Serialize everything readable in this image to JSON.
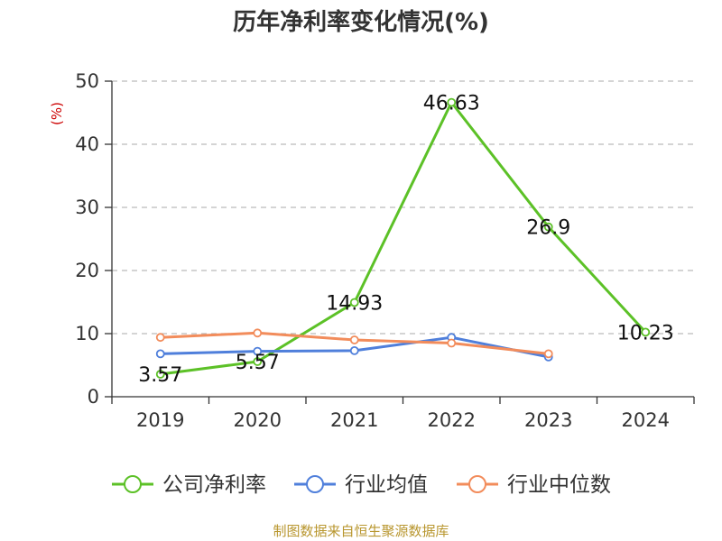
{
  "chart_data": {
    "type": "line",
    "title": "历年净利率变化情况(%)",
    "ylabel": "(%)",
    "xlabel": "",
    "categories": [
      "2019",
      "2020",
      "2021",
      "2022",
      "2023",
      "2024"
    ],
    "ylim": [
      0,
      50
    ],
    "yticks": [
      0,
      10,
      20,
      30,
      40,
      50
    ],
    "grid": true,
    "legend_position": "bottom",
    "series": [
      {
        "name": "公司净利率",
        "color": "#5cc127",
        "values": [
          3.57,
          5.57,
          14.93,
          46.63,
          26.9,
          10.23
        ],
        "labels": [
          "3.57",
          "5.57",
          "14.93",
          "46.63",
          "26.9",
          "10.23"
        ]
      },
      {
        "name": "行业均值",
        "color": "#4f7fdb",
        "values": [
          6.8,
          7.2,
          7.3,
          9.4,
          6.3,
          null
        ]
      },
      {
        "name": "行业中位数",
        "color": "#f28c5b",
        "values": [
          9.4,
          10.1,
          9.0,
          8.5,
          6.8,
          null
        ]
      }
    ]
  },
  "source": "制图数据来自恒生聚源数据库"
}
